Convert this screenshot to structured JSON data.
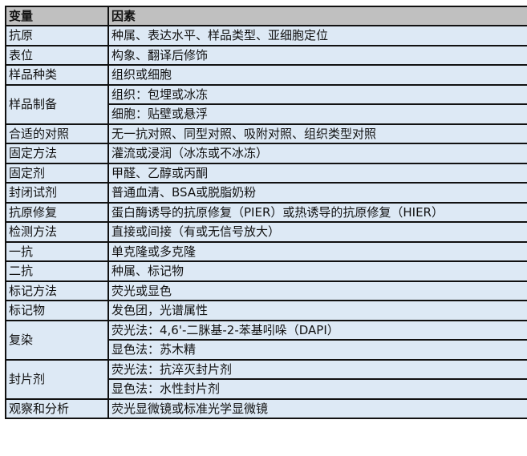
{
  "header": {
    "variable": "变量",
    "factor": "因素"
  },
  "rows": [
    {
      "variable": "抗原",
      "factors": [
        "种属、表达水平、样品类型、亚细胞定位"
      ]
    },
    {
      "variable": "表位",
      "factors": [
        "构象、翻译后修饰"
      ]
    },
    {
      "variable": "样品种类",
      "factors": [
        "组织或细胞"
      ]
    },
    {
      "variable": "样品制备",
      "factors": [
        "组织：包埋或冰冻",
        "细胞：贴壁或悬浮"
      ]
    },
    {
      "variable": "合适的对照",
      "factors": [
        "无一抗对照、同型对照、吸附对照、组织类型对照"
      ]
    },
    {
      "variable": "固定方法",
      "factors": [
        "灌流或浸润（冰冻或不冰冻）"
      ]
    },
    {
      "variable": "固定剂",
      "factors": [
        "甲醛、乙醇或丙酮"
      ]
    },
    {
      "variable": "封闭试剂",
      "factors": [
        "普通血清、BSA或脱脂奶粉"
      ]
    },
    {
      "variable": "抗原修复",
      "factors": [
        "蛋白酶诱导的抗原修复（PIER）或热诱导的抗原修复（HIER）"
      ]
    },
    {
      "variable": "检测方法",
      "factors": [
        "直接或间接（有或无信号放大）"
      ]
    },
    {
      "variable": "一抗",
      "factors": [
        "单克隆或多克隆"
      ]
    },
    {
      "variable": "二抗",
      "factors": [
        "种属、标记物"
      ]
    },
    {
      "variable": "标记方法",
      "factors": [
        "荧光或显色"
      ]
    },
    {
      "variable": "标记物",
      "factors": [
        "发色团，光谱属性"
      ]
    },
    {
      "variable": "复染",
      "factors": [
        "荧光法：4,6'-二脒基-2-苯基吲哚（DAPI）",
        "显色法：苏木精"
      ]
    },
    {
      "variable": "封片剂",
      "factors": [
        "荧光法：抗淬灭封片剂",
        "显色法：水性封片剂"
      ]
    },
    {
      "variable": "观察和分析",
      "factors": [
        "荧光显微镜或标准光学显微镜"
      ]
    }
  ]
}
